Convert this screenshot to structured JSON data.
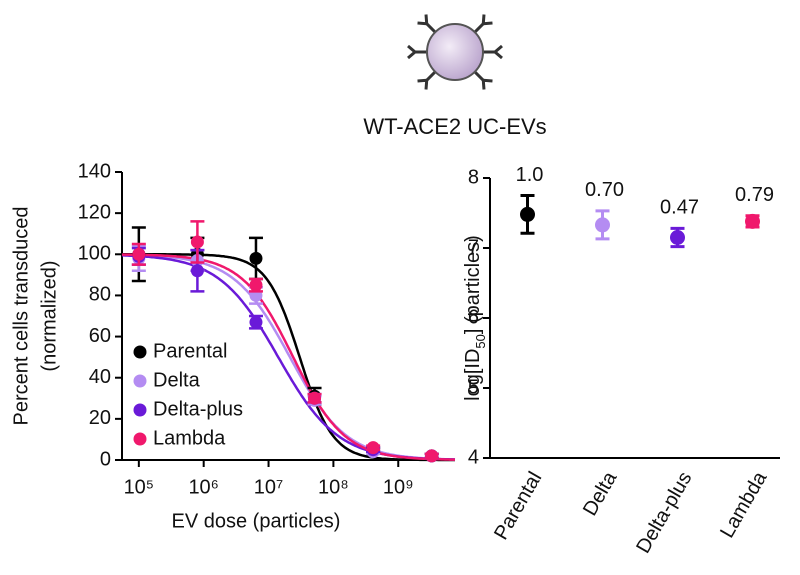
{
  "chart_data": [
    {
      "type": "scatter",
      "title": "WT-ACE2 UC-EVs",
      "x_label": "EV dose (particles)",
      "y_label": [
        "Percent cells transduced",
        "(normalized)"
      ],
      "x": [
        100000,
        800000,
        6400000,
        51200000,
        410000000,
        3280000000
      ],
      "xscale": "log",
      "xlim": [
        55000,
        7500000000
      ],
      "xticks": [
        {
          "value": 100000,
          "label": "10⁵"
        },
        {
          "value": 1000000,
          "label": "10⁶"
        },
        {
          "value": 10000000,
          "label": "10⁷"
        },
        {
          "value": 100000000,
          "label": "10⁸"
        },
        {
          "value": 1000000000,
          "label": "10⁹"
        }
      ],
      "ylim": [
        0,
        140
      ],
      "yticks": [
        0,
        20,
        40,
        60,
        80,
        100,
        120,
        140
      ],
      "legend": "lower left",
      "fit": {
        "top": 100,
        "bottom": 0
      },
      "series": [
        {
          "name": "Parental",
          "color": "#000000",
          "values": [
            100,
            100,
            98,
            31,
            5,
            2
          ],
          "errors": [
            13,
            8,
            10,
            4,
            1,
            1
          ],
          "log_ic50": 7.48,
          "hill": 1.7
        },
        {
          "name": "Delta",
          "color": "#b48cf2",
          "values": [
            98,
            97,
            80,
            29,
            4,
            2
          ],
          "errors": [
            6,
            5,
            4,
            2,
            1,
            1
          ],
          "log_ic50": 7.33,
          "hill": 1.0
        },
        {
          "name": "Delta-plus",
          "color": "#6a1ad8",
          "values": [
            99,
            92,
            67,
            30,
            5,
            2
          ],
          "errors": [
            4,
            10,
            3,
            2,
            1,
            1
          ],
          "log_ic50": 7.15,
          "hill": 0.95
        },
        {
          "name": "Lambda",
          "color": "#f0186c",
          "values": [
            100,
            106,
            85,
            30,
            6,
            2
          ],
          "errors": [
            5,
            10,
            3,
            2,
            1,
            1
          ],
          "log_ic50": 7.38,
          "hill": 1.1
        }
      ]
    },
    {
      "type": "dot",
      "y_label": [
        "log[ID",
        "50",
        "] (particles)"
      ],
      "categories": [
        "Parental",
        "Delta",
        "Delta-plus",
        "Lambda"
      ],
      "values": [
        7.48,
        7.33,
        7.15,
        7.38
      ],
      "errors": [
        0.27,
        0.2,
        0.13,
        0.08
      ],
      "colors": [
        "#000000",
        "#b48cf2",
        "#6a1ad8",
        "#f0186c"
      ],
      "annotations": [
        "1.0",
        "0.70",
        "0.47",
        "0.79"
      ],
      "ylim": [
        4,
        8
      ],
      "yticks": [
        4,
        5,
        6,
        7,
        8
      ]
    }
  ]
}
